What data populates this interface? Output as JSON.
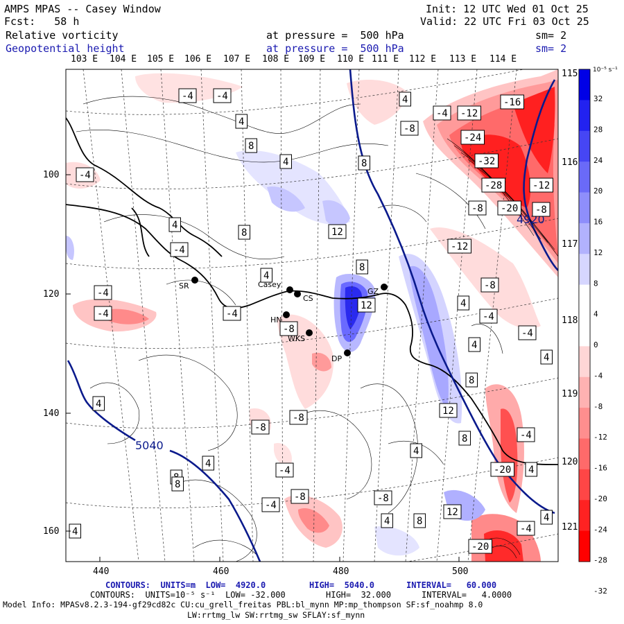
{
  "header": {
    "title": "AMPS MPAS -- Casey Window",
    "forecast": "Fcst:   58 h",
    "init": "Init: 12 UTC Wed 01 Oct 25",
    "valid": "Valid: 22 UTC Fri 03 Oct 25",
    "field1": {
      "name": "Relative vorticity",
      "pressure": "at pressure =  500 hPa",
      "sm": "sm= 2"
    },
    "field2": {
      "name": "Geopotential height",
      "pressure": "at pressure =  500 hPa",
      "sm": "sm= 2"
    }
  },
  "longitude_labels": [
    "103 E",
    "104 E",
    "105 E",
    "106 E",
    "107 E",
    "108 E",
    "109 E",
    "110 E",
    "111 E",
    "112 E",
    "113 E",
    "114 E"
  ],
  "latitude_labels": [
    "115 E",
    "116 E",
    "117 E",
    "118 E",
    "119 E",
    "120 E",
    "121 E"
  ],
  "x_axis_ticks": [
    "440",
    "460",
    "480",
    "500"
  ],
  "y_axis_ticks": [
    "100",
    "120",
    "140",
    "160"
  ],
  "colorbar": {
    "unit": "10⁻⁵ s⁻¹",
    "ticks": [
      "32",
      "28",
      "24",
      "20",
      "16",
      "12",
      "8",
      "4",
      "0",
      "-4",
      "-8",
      "-12",
      "-16",
      "-20",
      "-24",
      "-28",
      "-32"
    ]
  },
  "stations": [
    "SR",
    "Casey",
    "CS",
    "HN",
    "WKS",
    "DP",
    "GZ"
  ],
  "height_labels": [
    "5040",
    "4920"
  ],
  "contour_labels": [
    "-4",
    "-4",
    "4",
    "8",
    "4",
    "-4",
    "8",
    "4",
    "-8",
    "-4",
    "-12",
    "-16",
    "-24",
    "-32",
    "-28",
    "-12",
    "-20",
    "-8",
    "4920",
    "-8",
    "4",
    "-4",
    "8",
    "12",
    "-12",
    "-4",
    "-8",
    "-4",
    "4",
    "-4",
    "-8",
    "8",
    "4",
    "12",
    "-4",
    "4",
    "-4",
    "4",
    "8",
    "4",
    "12",
    "8",
    "-8",
    "-8",
    "4",
    "8",
    "4",
    "-4",
    "-8",
    "-20",
    "4",
    "-4",
    "-8",
    "12",
    "8",
    "4",
    "-4",
    "-20",
    "4",
    "4",
    "-4",
    "8"
  ],
  "footer": {
    "line1": {
      "prefix": "CONTOURS:  UNITS=m  LOW=  4920.0",
      "high": "HIGH=  5040.0",
      "interval": "INTERVAL=   60.000"
    },
    "line2": {
      "prefix": "CONTOURS:  UNITS=10⁻⁵ s⁻¹  LOW= -32.000",
      "high": "HIGH=  32.000",
      "interval": "INTERVAL=   4.0000"
    },
    "line3": "Model Info: MPASv8.2.3-194-gf29cd82c CU:cu_grell_freitas PBL:bl_mynn MP:mp_thompson SF:sf_noahmp 8.0",
    "line4": "LW:rrtmg_lw SW:rrtmg_sw SFLAY:sf_mynn"
  },
  "colors": {
    "height_contour": "#0a1a8c",
    "neg_fill": "#ff2020",
    "pos_fill": "#2020ff"
  }
}
